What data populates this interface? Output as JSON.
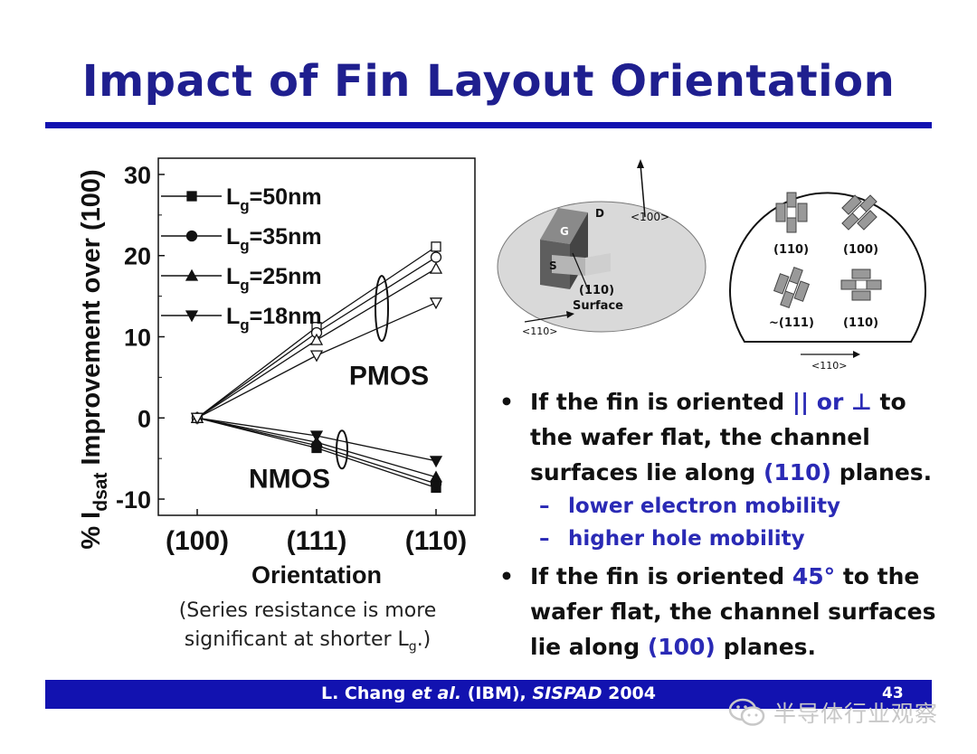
{
  "slide": {
    "title": "Impact of Fin Layout Orientation",
    "note_line1": "(Series resistance is more",
    "note_line2_pre": "significant at shorter L",
    "note_line2_sub": "g",
    "note_line2_post": ".)",
    "page_number": "43"
  },
  "citation": {
    "author": "L. Chang ",
    "etal": "et al.",
    "org": " (IBM), ",
    "venue": "SISPAD",
    "year": " 2004"
  },
  "bullets": {
    "b1_part1": "If the fin is oriented ",
    "b1_hl1": "|| or ⊥",
    "b1_part2": " to the wafer flat, the channel surfaces lie along ",
    "b1_hl2": "(110)",
    "b1_part3": " planes.",
    "sub1": "lower electron mobility",
    "sub2": "higher hole mobility",
    "b2_part1": "If the fin is oriented ",
    "b2_hl1": "45°",
    "b2_part2": " to the wafer flat, the channel surfaces lie along ",
    "b2_hl2": "(100)",
    "b2_part3": " planes.",
    "dash": "–",
    "bullet": "•"
  },
  "figures": {
    "wafer": {
      "g": "G",
      "d": "D",
      "s": "S",
      "surface1": "(110)",
      "surface2": "Surface",
      "axis_up": "<100>",
      "axis_low": "<110>"
    },
    "orientations": {
      "labels": [
        "(110)",
        "(100)",
        "~(111)",
        "(110)"
      ],
      "axis": "<110>"
    }
  },
  "watermark": {
    "text": "半导体行业观察"
  },
  "chart_data": {
    "type": "line",
    "categories": [
      "(100)",
      "(111)",
      "(110)"
    ],
    "xlabel": "Orientation",
    "ylabel_pre": "% I",
    "ylabel_sub": "dsat",
    "ylabel_post": " Improvement over (100)",
    "ylim": [
      -12,
      32
    ],
    "yticks": [
      30,
      20,
      10,
      0,
      -10
    ],
    "legend_position": "top-left",
    "annotations": [
      "PMOS",
      "NMOS"
    ],
    "series": [
      {
        "name": "Lg=50nm",
        "legend_pre": "L",
        "legend_sub": "g",
        "legend_post": "=50nm",
        "marker": "square",
        "pmos": [
          0,
          11.2,
          21.1
        ],
        "nmos": [
          0,
          -3.7,
          -8.6
        ]
      },
      {
        "name": "Lg=35nm",
        "legend_pre": "L",
        "legend_sub": "g",
        "legend_post": "=35nm",
        "marker": "circle",
        "pmos": [
          0,
          10.5,
          19.8
        ],
        "nmos": [
          0,
          -3.4,
          -8.1
        ]
      },
      {
        "name": "Lg=25nm",
        "legend_pre": "L",
        "legend_sub": "g",
        "legend_post": "=25nm",
        "marker": "triangle-up",
        "pmos": [
          0,
          9.6,
          18.4
        ],
        "nmos": [
          0,
          -3.0,
          -7.3
        ]
      },
      {
        "name": "Lg=18nm",
        "legend_pre": "L",
        "legend_sub": "g",
        "legend_post": "=18nm",
        "marker": "triangle-down",
        "pmos": [
          0,
          7.7,
          14.2
        ],
        "nmos": [
          0,
          -2.2,
          -5.3
        ]
      }
    ]
  }
}
